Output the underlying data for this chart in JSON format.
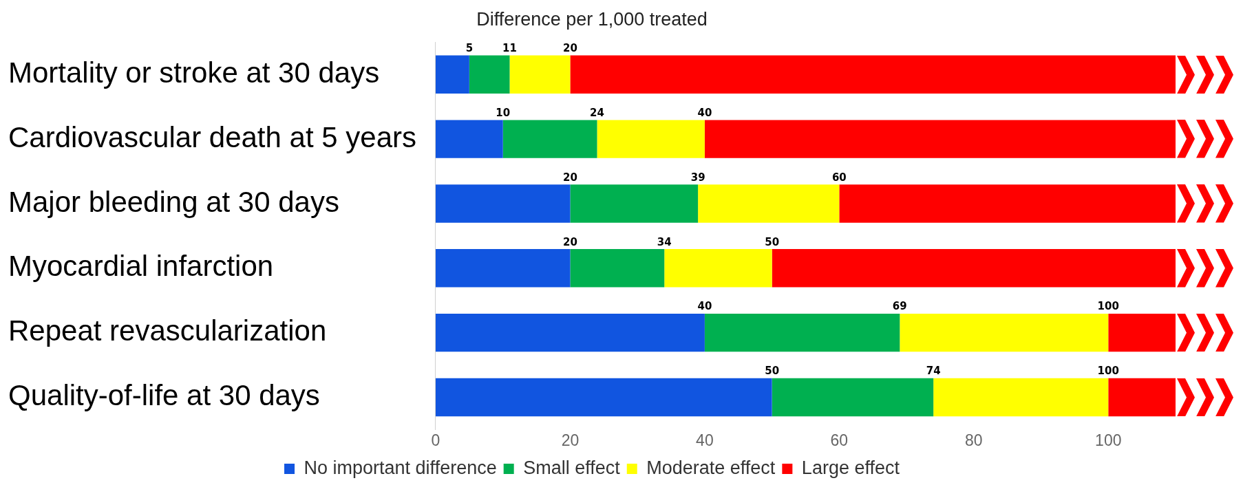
{
  "chart_data": {
    "type": "bar",
    "orientation": "horizontal",
    "stacked": true,
    "title": "Difference per 1,000 treated",
    "categories": [
      "Mortality or stroke at 30 days",
      "Cardiovascular death at 5 years",
      "Major bleeding at 30 days",
      "Myocardial infarction",
      "Repeat revascularization",
      "Quality-of-life at 30 days"
    ],
    "series": [
      {
        "name": "No important difference",
        "color": "#1155e0",
        "values": [
          5,
          10,
          20,
          20,
          40,
          50
        ]
      },
      {
        "name": "Small effect",
        "color": "#00b050",
        "values": [
          6,
          14,
          19,
          14,
          29,
          24
        ]
      },
      {
        "name": "Moderate effect",
        "color": "#ffff00",
        "values": [
          9,
          16,
          21,
          16,
          31,
          26
        ]
      },
      {
        "name": "Large effect",
        "color": "#ff0000",
        "values": [
          90,
          70,
          50,
          60,
          10,
          10
        ]
      }
    ],
    "annotations": [
      {
        "text": "5",
        "x": 5,
        "y": "Mortality or stroke at 30 days"
      },
      {
        "text": "11",
        "x": 11,
        "y": "Mortality or stroke at 30 days"
      },
      {
        "text": "20",
        "x": 20,
        "y": "Mortality or stroke at 30 days"
      },
      {
        "text": "10",
        "x": 10,
        "y": "Cardiovascular death at 5 years"
      },
      {
        "text": "24",
        "x": 24,
        "y": "Cardiovascular death at 5 years"
      },
      {
        "text": "40",
        "x": 40,
        "y": "Cardiovascular death at 5 years"
      },
      {
        "text": "20",
        "x": 20,
        "y": "Major bleeding at 30 days"
      },
      {
        "text": "39",
        "x": 39,
        "y": "Major bleeding at 30 days"
      },
      {
        "text": "60",
        "x": 60,
        "y": "Major bleeding at 30 days"
      },
      {
        "text": "20",
        "x": 20,
        "y": "Myocardial infarction"
      },
      {
        "text": "34",
        "x": 34,
        "y": "Myocardial infarction"
      },
      {
        "text": "50",
        "x": 50,
        "y": "Myocardial infarction"
      },
      {
        "text": "40",
        "x": 40,
        "y": "Repeat revascularization"
      },
      {
        "text": "69",
        "x": 69,
        "y": "Repeat revascularization"
      },
      {
        "text": "100",
        "x": 100,
        "y": "Repeat revascularization"
      },
      {
        "text": "50",
        "x": 50,
        "y": "Quality-of-life at 30 days"
      },
      {
        "text": "74",
        "x": 74,
        "y": "Quality-of-life at 30 days"
      },
      {
        "text": "100",
        "x": 100,
        "y": "Quality-of-life at 30 days"
      }
    ],
    "xlim": [
      0,
      110
    ],
    "xticks": [
      0,
      20,
      40,
      60,
      80,
      100
    ],
    "grid": false,
    "legend": "bottom"
  }
}
